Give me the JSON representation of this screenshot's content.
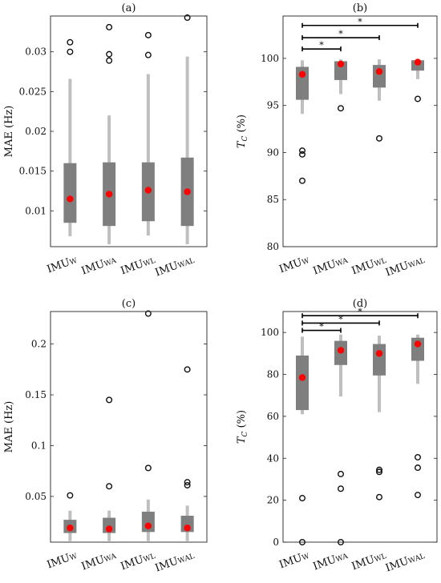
{
  "chart_data": [
    {
      "type": "box",
      "title": "(a)",
      "ylabel": "MAE (Hz)",
      "ylim": [
        0.0055,
        0.0345
      ],
      "yticks": [
        0.01,
        0.015,
        0.02,
        0.025,
        0.03
      ],
      "ytick_labels": [
        "0.01",
        "0.015",
        "0.02",
        "0.025",
        "0.03"
      ],
      "categories": [
        {
          "main": "IMU",
          "sub": "W"
        },
        {
          "main": "IMU",
          "sub": "WA"
        },
        {
          "main": "IMU",
          "sub": "WL"
        },
        {
          "main": "IMU",
          "sub": "WAL"
        }
      ],
      "boxes": [
        {
          "q1": 0.0085,
          "q3": 0.016,
          "whisker_low": 0.0068,
          "whisker_high": 0.0266,
          "mean": 0.0115,
          "outliers": [
            0.0312,
            0.03
          ]
        },
        {
          "q1": 0.0081,
          "q3": 0.0161,
          "whisker_low": 0.0058,
          "whisker_high": 0.022,
          "mean": 0.0121,
          "outliers": [
            0.0331,
            0.0297,
            0.0289
          ]
        },
        {
          "q1": 0.0087,
          "q3": 0.0161,
          "whisker_low": 0.0069,
          "whisker_high": 0.0272,
          "mean": 0.0126,
          "outliers": [
            0.0321,
            0.0296
          ]
        },
        {
          "q1": 0.0081,
          "q3": 0.0167,
          "whisker_low": 0.0058,
          "whisker_high": 0.0294,
          "mean": 0.0124,
          "outliers": [
            0.0343
          ]
        }
      ],
      "significance": []
    },
    {
      "type": "box",
      "title": "(b)",
      "ylabel": {
        "main": "T",
        "sub": "C",
        "rest": " (%)"
      },
      "ylim": [
        80,
        104.5
      ],
      "yticks": [
        80,
        85,
        90,
        95,
        100
      ],
      "ytick_labels": [
        "80",
        "85",
        "90",
        "95",
        "100"
      ],
      "categories": [
        {
          "main": "IMU",
          "sub": "W"
        },
        {
          "main": "IMU",
          "sub": "WA"
        },
        {
          "main": "IMU",
          "sub": "WL"
        },
        {
          "main": "IMU",
          "sub": "WAL"
        }
      ],
      "boxes": [
        {
          "q1": 95.6,
          "q3": 99.1,
          "whisker_low": 94.1,
          "whisker_high": 99.8,
          "mean": 98.3,
          "outliers": [
            90.2,
            89.8,
            87.0
          ]
        },
        {
          "q1": 97.7,
          "q3": 99.7,
          "whisker_low": 96.2,
          "whisker_high": 99.9,
          "mean": 99.4,
          "outliers": [
            94.7
          ]
        },
        {
          "q1": 96.9,
          "q3": 99.3,
          "whisker_low": 95.5,
          "whisker_high": 99.9,
          "mean": 98.6,
          "outliers": [
            91.5
          ]
        },
        {
          "q1": 98.7,
          "q3": 99.8,
          "whisker_low": 97.8,
          "whisker_high": 99.9,
          "mean": 99.6,
          "outliers": [
            95.7
          ]
        }
      ],
      "significance": [
        {
          "from": 0,
          "to": 1,
          "level": 101.0,
          "marker": "*"
        },
        {
          "from": 0,
          "to": 2,
          "level": 102.2,
          "marker": "*"
        },
        {
          "from": 0,
          "to": 3,
          "level": 103.5,
          "marker": "*"
        }
      ]
    },
    {
      "type": "box",
      "title": "(c)",
      "ylabel": "MAE (Hz)",
      "ylim": [
        0.005,
        0.232
      ],
      "yticks": [
        0.05,
        0.1,
        0.15,
        0.2
      ],
      "ytick_labels": [
        "0.05",
        "0.1",
        "0.15",
        "0.2"
      ],
      "categories": [
        {
          "main": "IMU",
          "sub": "W"
        },
        {
          "main": "IMU",
          "sub": "WA"
        },
        {
          "main": "IMU",
          "sub": "WL"
        },
        {
          "main": "IMU",
          "sub": "WAL"
        }
      ],
      "boxes": [
        {
          "q1": 0.014,
          "q3": 0.027,
          "whisker_low": 0.006,
          "whisker_high": 0.036,
          "mean": 0.019,
          "outliers": [
            0.051
          ]
        },
        {
          "q1": 0.014,
          "q3": 0.029,
          "whisker_low": 0.006,
          "whisker_high": 0.036,
          "mean": 0.018,
          "outliers": [
            0.145,
            0.06
          ]
        },
        {
          "q1": 0.015,
          "q3": 0.035,
          "whisker_low": 0.006,
          "whisker_high": 0.047,
          "mean": 0.021,
          "outliers": [
            0.23,
            0.078
          ]
        },
        {
          "q1": 0.015,
          "q3": 0.031,
          "whisker_low": 0.006,
          "whisker_high": 0.041,
          "mean": 0.019,
          "outliers": [
            0.175,
            0.064,
            0.061
          ]
        }
      ],
      "significance": []
    },
    {
      "type": "box",
      "title": "(d)",
      "ylabel": {
        "main": "T",
        "sub": "C",
        "rest": " (%)"
      },
      "ylim": [
        0,
        110
      ],
      "yticks": [
        0,
        20,
        40,
        60,
        80,
        100
      ],
      "ytick_labels": [
        "0",
        "20",
        "40",
        "60",
        "80",
        "100"
      ],
      "categories": [
        {
          "main": "IMU",
          "sub": "W"
        },
        {
          "main": "IMU",
          "sub": "WA"
        },
        {
          "main": "IMU",
          "sub": "WL"
        },
        {
          "main": "IMU",
          "sub": "WAL"
        }
      ],
      "boxes": [
        {
          "q1": 63,
          "q3": 89,
          "whisker_low": 61,
          "whisker_high": 98,
          "mean": 78.5,
          "outliers": [
            21,
            0
          ]
        },
        {
          "q1": 84.5,
          "q3": 96,
          "whisker_low": 69.5,
          "whisker_high": 99,
          "mean": 91.5,
          "outliers": [
            32.5,
            25.5,
            0
          ]
        },
        {
          "q1": 79.5,
          "q3": 94.5,
          "whisker_low": 62,
          "whisker_high": 98.5,
          "mean": 90,
          "outliers": [
            34.5,
            33.5,
            21.5
          ]
        },
        {
          "q1": 86.5,
          "q3": 97.5,
          "whisker_low": 75.5,
          "whisker_high": 99,
          "mean": 94.5,
          "outliers": [
            40.5,
            35.5,
            22.5
          ]
        }
      ],
      "significance": [
        {
          "from": 0,
          "to": 1,
          "level": 101,
          "marker": "*"
        },
        {
          "from": 0,
          "to": 2,
          "level": 104.5,
          "marker": "*"
        },
        {
          "from": 0,
          "to": 3,
          "level": 108,
          "marker": "*"
        }
      ]
    }
  ],
  "colors": {
    "box": "#7f7f7f",
    "whisker": "#bfbfbf",
    "mean": "#ff0000",
    "outline": "#111111",
    "sig_line": "#000000"
  }
}
